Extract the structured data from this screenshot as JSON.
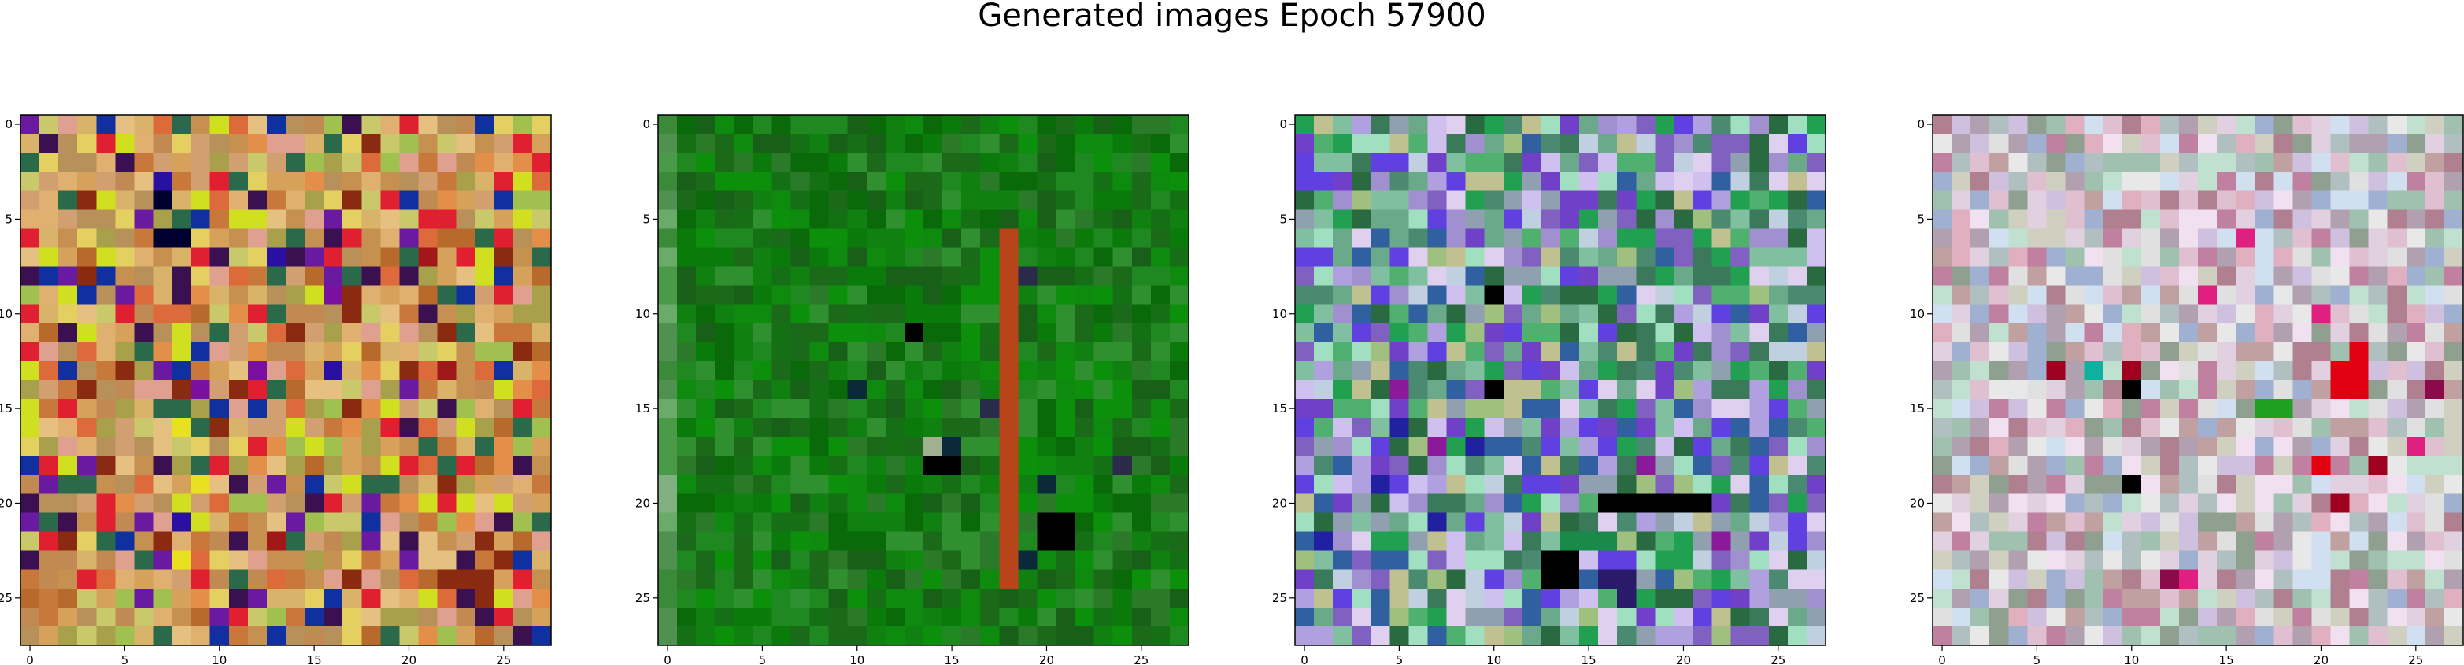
{
  "title": "Generated images Epoch 57900",
  "chart_data": [
    {
      "type": "heatmap",
      "title": "",
      "grid_size": [
        28,
        28
      ],
      "xticks": [
        "0",
        "5",
        "10",
        "15",
        "20",
        "25"
      ],
      "yticks": [
        "0",
        "5",
        "10",
        "15",
        "20",
        "25"
      ],
      "xlim": [
        -0.5,
        27.5
      ],
      "ylim": [
        27.5,
        -0.5
      ],
      "grid": false,
      "palette": [
        "#c08a52",
        "#d6a15a",
        "#e0b070",
        "#c8783a",
        "#b86a2c",
        "#d9b36a",
        "#a8a04a",
        "#c9c86a",
        "#e6c080",
        "#d2a070",
        "#b8905a",
        "#e38f4a",
        "#dd6a3a",
        "#c59050",
        "#a0c050",
        "#e0a090",
        "#8a2a10",
        "#3a1050",
        "#6a1aa0",
        "#d0e020",
        "#e02030",
        "#1030a0",
        "#2a6a4a",
        "#e4d060"
      ],
      "features": [
        {
          "color": "#000030",
          "cells": [
            [
              4,
              7
            ],
            [
              6,
              7
            ],
            [
              6,
              8
            ]
          ]
        },
        {
          "color": "#2a10a0",
          "cells": [
            [
              3,
              7
            ],
            [
              7,
              13
            ],
            [
              13,
              16
            ],
            [
              21,
              8
            ]
          ]
        },
        {
          "color": "#7a10a0",
          "cells": [
            [
              9,
              16
            ],
            [
              13,
              12
            ],
            [
              14,
              9
            ],
            [
              16,
              8
            ]
          ]
        },
        {
          "color": "#a01818",
          "cells": [
            [
              7,
              21
            ],
            [
              13,
              22
            ],
            [
              22,
              13
            ]
          ]
        },
        {
          "color": "#e8e020",
          "cells": [
            [
              16,
              8
            ],
            [
              19,
              9
            ],
            [
              23,
              8
            ]
          ]
        }
      ]
    },
    {
      "type": "heatmap",
      "title": "",
      "grid_size": [
        28,
        28
      ],
      "xticks": [
        "0",
        "5",
        "10",
        "15",
        "20",
        "25"
      ],
      "yticks": [
        "0",
        "5",
        "10",
        "15",
        "20",
        "25"
      ],
      "xlim": [
        -0.5,
        27.5
      ],
      "ylim": [
        27.5,
        -0.5
      ],
      "grid": false,
      "palette": [
        "#0a7a0a",
        "#108010",
        "#157015",
        "#0e8a0e",
        "#1a6a1a",
        "#208820",
        "#0a6a0a",
        "#2a7a2a",
        "#0c900c",
        "#186018",
        "#309030"
      ],
      "left_column_palette": [
        "#4a9a4a",
        "#6aaa6a",
        "#509050",
        "#80b080",
        "#3a8a3a"
      ],
      "stripe": {
        "column": 18,
        "rows": [
          6,
          24
        ],
        "color": "#b8441a"
      },
      "features": [
        {
          "color": "#000000",
          "cells": [
            [
              11,
              13
            ],
            [
              18,
              14
            ],
            [
              18,
              15
            ],
            [
              21,
              20
            ],
            [
              21,
              21
            ],
            [
              22,
              21
            ],
            [
              22,
              20
            ]
          ]
        },
        {
          "color": "#0a2a3a",
          "cells": [
            [
              14,
              10
            ],
            [
              17,
              15
            ],
            [
              19,
              20
            ],
            [
              23,
              19
            ]
          ]
        },
        {
          "color": "#2a2a4a",
          "cells": [
            [
              8,
              19
            ],
            [
              15,
              17
            ],
            [
              18,
              24
            ]
          ]
        },
        {
          "color": "#a0b090",
          "cells": [
            [
              17,
              14
            ]
          ]
        }
      ]
    },
    {
      "type": "heatmap",
      "title": "",
      "grid_size": [
        28,
        28
      ],
      "xticks": [
        "0",
        "5",
        "10",
        "15",
        "20",
        "25"
      ],
      "yticks": [
        "0",
        "5",
        "10",
        "15",
        "20",
        "25"
      ],
      "xlim": [
        -0.5,
        27.5
      ],
      "ylim": [
        27.5,
        -0.5
      ],
      "grid": false,
      "palette": [
        "#6aaa8a",
        "#80c0a0",
        "#a0c080",
        "#c0d0e0",
        "#a090d0",
        "#8060c0",
        "#6040e0",
        "#3a7a5a",
        "#2a6a40",
        "#b0a0e0",
        "#d0c0f0",
        "#4a8a70",
        "#90a0b0",
        "#7040c8",
        "#50b070",
        "#a0e0c0",
        "#3060a0",
        "#c0c090",
        "#20a050",
        "#e0d0f0"
      ],
      "features": [
        {
          "color": "#000000",
          "cells": [
            [
              23,
              13
            ],
            [
              23,
              14
            ],
            [
              24,
              13
            ],
            [
              24,
              14
            ],
            [
              20,
              16
            ],
            [
              20,
              17
            ],
            [
              20,
              18
            ],
            [
              20,
              19
            ],
            [
              20,
              20
            ],
            [
              20,
              21
            ],
            [
              9,
              10
            ],
            [
              14,
              10
            ]
          ]
        },
        {
          "color": "#2020a0",
          "cells": [
            [
              16,
              5
            ],
            [
              17,
              9
            ],
            [
              19,
              4
            ],
            [
              21,
              7
            ],
            [
              22,
              1
            ]
          ]
        },
        {
          "color": "#8a1a9a",
          "cells": [
            [
              14,
              5
            ],
            [
              17,
              7
            ],
            [
              18,
              18
            ],
            [
              22,
              22
            ]
          ]
        },
        {
          "color": "#1a8a4a",
          "cells": [
            [
              22,
              14
            ],
            [
              22,
              15
            ],
            [
              22,
              16
            ]
          ]
        },
        {
          "color": "#2a1a6a",
          "cells": [
            [
              24,
              16
            ],
            [
              24,
              17
            ],
            [
              25,
              17
            ]
          ]
        }
      ]
    },
    {
      "type": "heatmap",
      "title": "",
      "grid_size": [
        28,
        28
      ],
      "xticks": [
        "0",
        "5",
        "10",
        "15",
        "20",
        "25"
      ],
      "yticks": [
        "0",
        "5",
        "10",
        "15",
        "20",
        "25"
      ],
      "xlim": [
        -0.5,
        27.5
      ],
      "ylim": [
        27.5,
        -0.5
      ],
      "grid": false,
      "palette": [
        "#e0d0e0",
        "#c0e0d0",
        "#d0c0e0",
        "#e0e0e0",
        "#b0a0b0",
        "#c0a0a0",
        "#e0c0d0",
        "#a0c0b0",
        "#d0e0f0",
        "#c080a0",
        "#e0b0c0",
        "#b0c0c0",
        "#f0e0f0",
        "#90a090",
        "#d0d0c0",
        "#a0b0d0",
        "#e8e8e8",
        "#b08090"
      ],
      "features": [
        {
          "color": "#e00010",
          "cells": [
            [
              13,
              21
            ],
            [
              13,
              22
            ],
            [
              14,
              21
            ],
            [
              14,
              22
            ],
            [
              12,
              22
            ],
            [
              18,
              20
            ]
          ]
        },
        {
          "color": "#a00020",
          "cells": [
            [
              13,
              10
            ],
            [
              19,
              10
            ],
            [
              20,
              21
            ],
            [
              18,
              23
            ],
            [
              13,
              6
            ]
          ]
        },
        {
          "color": "#000000",
          "cells": [
            [
              14,
              10
            ],
            [
              19,
              10
            ]
          ]
        },
        {
          "color": "#10b0a0",
          "cells": [
            [
              13,
              8
            ]
          ]
        },
        {
          "color": "#20a020",
          "cells": [
            [
              15,
              17
            ],
            [
              15,
              18
            ]
          ]
        },
        {
          "color": "#e02080",
          "cells": [
            [
              6,
              16
            ],
            [
              9,
              14
            ],
            [
              10,
              20
            ],
            [
              17,
              25
            ],
            [
              24,
              13
            ]
          ]
        },
        {
          "color": "#8a0a4a",
          "cells": [
            [
              24,
              12
            ],
            [
              14,
              26
            ]
          ]
        }
      ]
    }
  ]
}
